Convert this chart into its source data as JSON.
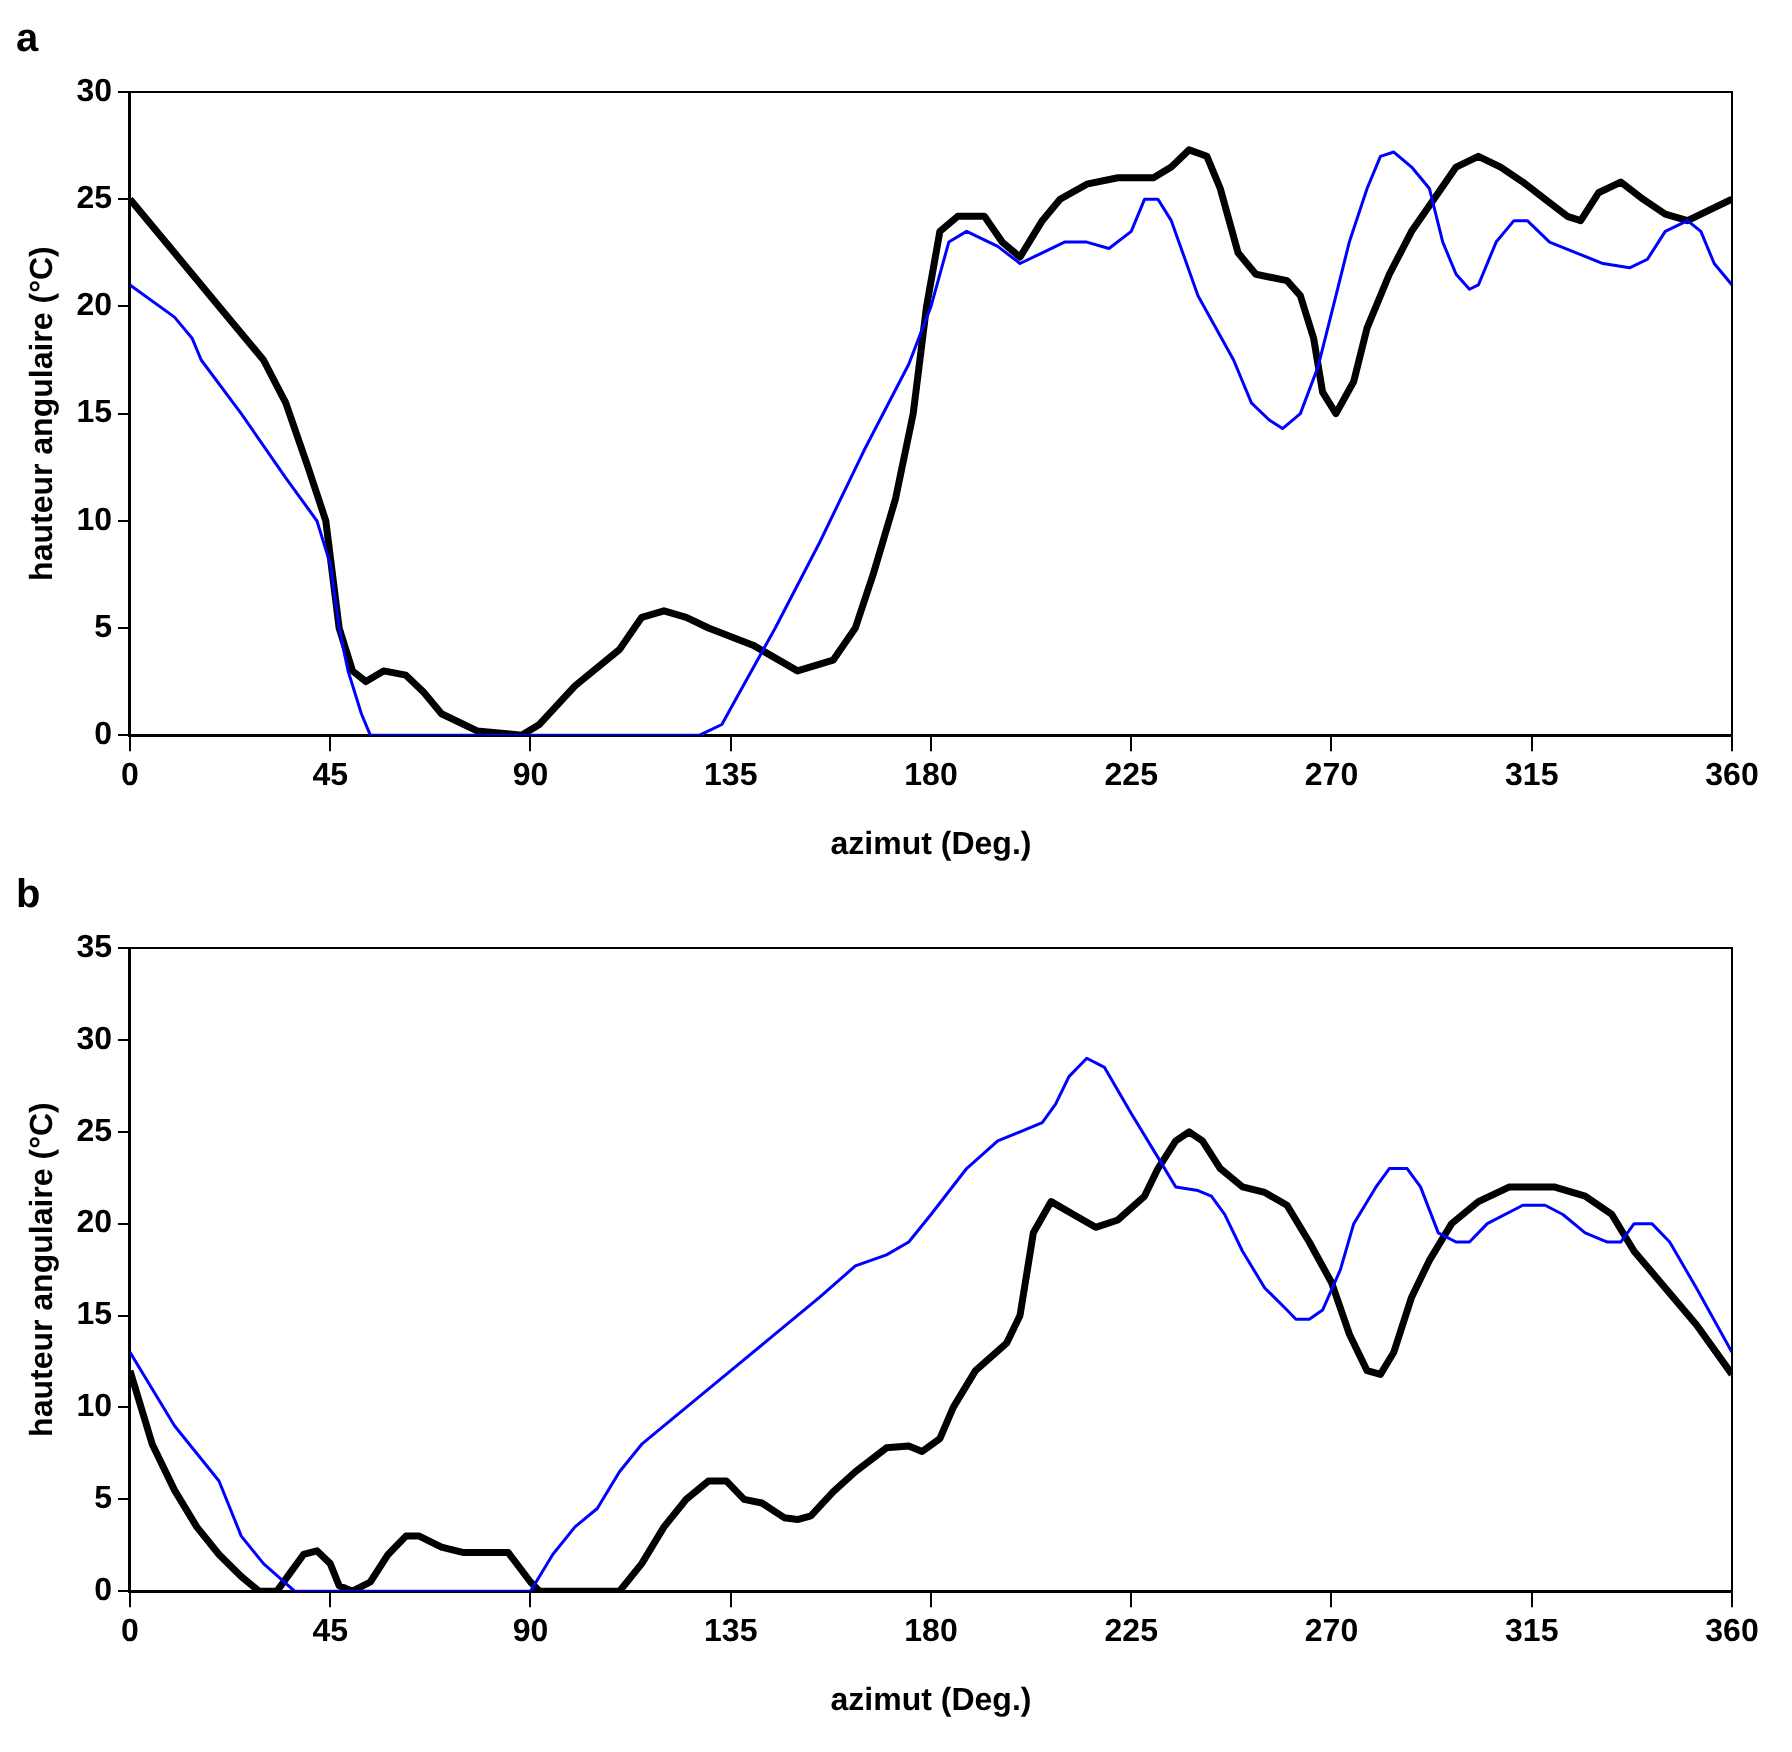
{
  "chart_data": [
    {
      "type": "line",
      "title": "a",
      "xlabel": "azimut (Deg.)",
      "ylabel": "hauteur angulaire (°C)",
      "xlim": [
        0,
        360
      ],
      "xticks": [
        0,
        45,
        90,
        135,
        180,
        225,
        270,
        315,
        360
      ],
      "ylim": [
        0,
        30
      ],
      "yticks": [
        0,
        5,
        10,
        15,
        20,
        25,
        30
      ],
      "grid": false,
      "legend": false,
      "marker": "none",
      "line_style": "solid",
      "series": [
        {
          "color": "#000000",
          "x": [
            0,
            10,
            20,
            30,
            35,
            40,
            44,
            47,
            50,
            53,
            57,
            62,
            66,
            70,
            78,
            88,
            92,
            100,
            110,
            115,
            120,
            125,
            130,
            140,
            150,
            158,
            163,
            167,
            172,
            176,
            179,
            182,
            186,
            192,
            196,
            200,
            205,
            209,
            215,
            222,
            230,
            234,
            238,
            242,
            245,
            249,
            253,
            260,
            263,
            266,
            268,
            271,
            275,
            278,
            283,
            288,
            293,
            298,
            303,
            308,
            313,
            318,
            323,
            326,
            330,
            335,
            340,
            345,
            350,
            355,
            360
          ],
          "values": [
            25,
            22.5,
            20,
            17.5,
            15.5,
            12.5,
            10,
            5,
            3,
            2.5,
            3,
            2.8,
            2,
            1,
            0.2,
            0,
            0.5,
            2.3,
            4,
            5.5,
            5.8,
            5.5,
            5,
            4.2,
            3,
            3.5,
            5,
            7.5,
            11,
            15,
            20,
            23.5,
            24.2,
            24.2,
            23,
            22.3,
            24,
            25,
            25.7,
            26,
            26,
            26.5,
            27.3,
            27,
            25.5,
            22.5,
            21.5,
            21.2,
            20.5,
            18.5,
            16,
            15,
            16.5,
            19,
            21.5,
            23.5,
            25,
            26.5,
            27,
            26.5,
            25.8,
            25,
            24.2,
            24,
            25.3,
            25.8,
            25,
            24.3,
            24,
            24.5,
            25
          ]
        },
        {
          "color": "#0000ff",
          "x": [
            0,
            10,
            14,
            16,
            25,
            35,
            42,
            45,
            47,
            49,
            52,
            54,
            128,
            133,
            137,
            145,
            155,
            165,
            175,
            180,
            184,
            188,
            195,
            200,
            205,
            210,
            215,
            220,
            225,
            228,
            231,
            234,
            240,
            248,
            252,
            256,
            259,
            263,
            267,
            271,
            274,
            278,
            281,
            284,
            288,
            292,
            295,
            298,
            301,
            303,
            307,
            311,
            314,
            319,
            325,
            331,
            337,
            341,
            345,
            350,
            353,
            356,
            360
          ],
          "values": [
            21,
            19.5,
            18.5,
            17.5,
            15,
            12,
            10,
            8,
            5,
            3,
            1,
            0,
            0,
            0.5,
            2,
            5,
            9,
            13.3,
            17.3,
            20,
            23,
            23.5,
            22.8,
            22,
            22.5,
            23,
            23,
            22.7,
            23.5,
            25,
            25,
            24,
            20.5,
            17.5,
            15.5,
            14.7,
            14.3,
            15,
            17.2,
            20.5,
            23,
            25.5,
            27,
            27.2,
            26.5,
            25.5,
            23,
            21.5,
            20.8,
            21,
            23,
            24,
            24,
            23,
            22.5,
            22,
            21.8,
            22.2,
            23.5,
            24,
            23.5,
            22,
            21
          ]
        }
      ]
    },
    {
      "type": "line",
      "title": "b",
      "xlabel": "azimut (Deg.)",
      "ylabel": "hauteur angulaire (°C)",
      "xlim": [
        0,
        360
      ],
      "xticks": [
        0,
        45,
        90,
        135,
        180,
        225,
        270,
        315,
        360
      ],
      "ylim": [
        0,
        35
      ],
      "yticks": [
        0,
        5,
        10,
        15,
        20,
        25,
        30,
        35
      ],
      "grid": false,
      "legend": false,
      "marker": "none",
      "line_style": "solid",
      "series": [
        {
          "color": "#000000",
          "x": [
            0,
            5,
            10,
            15,
            20,
            25,
            29,
            33,
            36,
            39,
            42,
            45,
            47,
            50,
            54,
            58,
            62,
            65,
            70,
            75,
            85,
            90,
            92,
            110,
            115,
            120,
            125,
            130,
            134,
            138,
            142,
            147,
            150,
            153,
            158,
            163,
            170,
            175,
            178,
            182,
            185,
            190,
            197,
            200,
            203,
            207,
            212,
            217,
            222,
            228,
            231,
            235,
            238,
            241,
            245,
            250,
            255,
            260,
            265,
            270,
            274,
            278,
            281,
            284,
            288,
            292,
            297,
            303,
            310,
            320,
            327,
            333,
            338,
            345,
            352,
            360
          ],
          "values": [
            12,
            8,
            5.5,
            3.5,
            2,
            0.8,
            0,
            0,
            1,
            2,
            2.2,
            1.5,
            0.3,
            0,
            0.5,
            2,
            3,
            3,
            2.4,
            2.1,
            2.1,
            0.5,
            0,
            0,
            1.5,
            3.5,
            5,
            6,
            6,
            5,
            4.8,
            4,
            3.9,
            4.1,
            5.4,
            6.5,
            7.8,
            7.9,
            7.6,
            8.3,
            10,
            12,
            13.5,
            15,
            19.5,
            21.2,
            20.5,
            19.8,
            20.2,
            21.5,
            23,
            24.5,
            25,
            24.5,
            23,
            22,
            21.7,
            21,
            19,
            16.8,
            14,
            12,
            11.8,
            13,
            16,
            18,
            20,
            21.2,
            22,
            22,
            21.5,
            20.5,
            18.5,
            16.5,
            14.5,
            11.8
          ]
        },
        {
          "color": "#0000ff",
          "x": [
            0,
            10,
            20,
            25,
            30,
            37,
            45,
            90,
            95,
            100,
            105,
            110,
            115,
            125,
            135,
            145,
            155,
            163,
            170,
            175,
            180,
            188,
            195,
            200,
            205,
            208,
            211,
            215,
            219,
            225,
            230,
            235,
            240,
            243,
            246,
            250,
            255,
            260,
            262,
            265,
            268,
            272,
            275,
            280,
            283,
            287,
            290,
            294,
            298,
            301,
            305,
            313,
            318,
            322,
            327,
            332,
            335,
            338,
            342,
            346,
            352,
            360
          ],
          "values": [
            13,
            9,
            6,
            3,
            1.5,
            0,
            0,
            0,
            2,
            3.5,
            4.5,
            6.5,
            8,
            10,
            12,
            14,
            16,
            17.7,
            18.3,
            19,
            20.5,
            23,
            24.5,
            25,
            25.5,
            26.5,
            28,
            29,
            28.5,
            26,
            24,
            22,
            21.8,
            21.5,
            20.5,
            18.5,
            16.5,
            15.3,
            14.8,
            14.8,
            15.3,
            17.5,
            20,
            22,
            23,
            23,
            22,
            19.5,
            19,
            19,
            20,
            21,
            21,
            20.5,
            19.5,
            19,
            19,
            20,
            20,
            19,
            16.5,
            13
          ]
        }
      ]
    }
  ]
}
